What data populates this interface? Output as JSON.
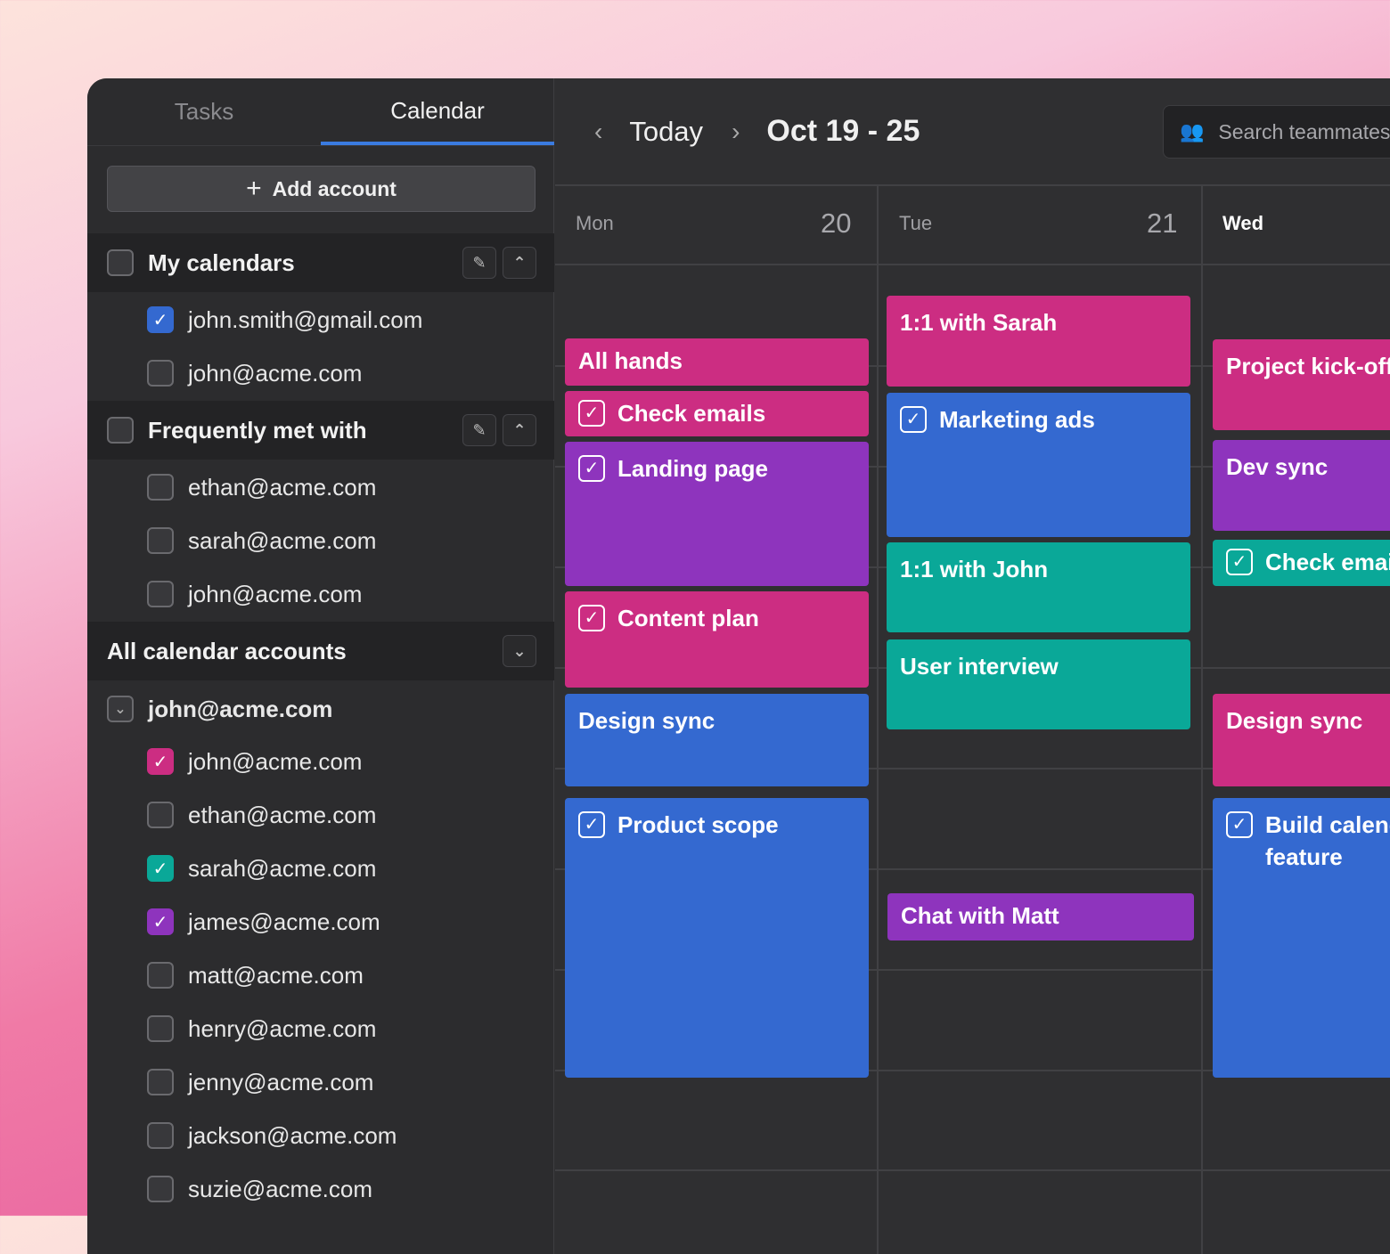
{
  "tabs": {
    "tasks": "Tasks",
    "calendar": "Calendar",
    "active": "Calendar"
  },
  "add_account": "Add account",
  "groups": [
    {
      "label": "My calendars",
      "items": [
        {
          "email": "john.smith@gmail.com",
          "checked": true,
          "color": "#3469d0"
        },
        {
          "email": "john@acme.com",
          "checked": false
        }
      ]
    },
    {
      "label": "Frequently met with",
      "items": [
        {
          "email": "ethan@acme.com",
          "checked": false
        },
        {
          "email": "sarah@acme.com",
          "checked": false
        },
        {
          "email": "john@acme.com",
          "checked": false
        }
      ]
    }
  ],
  "all_accounts": {
    "label": "All calendar accounts",
    "account": "john@acme.com",
    "items": [
      {
        "email": "john@acme.com",
        "checked": true,
        "color": "#cc2d82"
      },
      {
        "email": "ethan@acme.com",
        "checked": false
      },
      {
        "email": "sarah@acme.com",
        "checked": true,
        "color": "#0aa898"
      },
      {
        "email": "james@acme.com",
        "checked": true,
        "color": "#8e34bd"
      },
      {
        "email": "matt@acme.com",
        "checked": false
      },
      {
        "email": "henry@acme.com",
        "checked": false
      },
      {
        "email": "jenny@acme.com",
        "checked": false
      },
      {
        "email": "jackson@acme.com",
        "checked": false
      },
      {
        "email": "suzie@acme.com",
        "checked": false
      }
    ]
  },
  "header": {
    "today": "Today",
    "range": "Oct 19 - 25",
    "search_placeholder": "Search teammates"
  },
  "days": [
    {
      "name": "Mon",
      "num": "20"
    },
    {
      "name": "Tue",
      "num": "21"
    },
    {
      "name": "Wed",
      "num": ""
    }
  ],
  "colors": {
    "pink": "#cc2d82",
    "blue": "#3469d0",
    "purple": "#8e34bd",
    "teal": "#0aa898",
    "accent": "#3a7be0"
  },
  "events": [
    {
      "day": 0,
      "title": "All hands",
      "color": "pink",
      "task": false
    },
    {
      "day": 0,
      "title": "Check emails",
      "color": "pink",
      "task": true
    },
    {
      "day": 0,
      "title": "Landing page",
      "color": "purple",
      "task": true
    },
    {
      "day": 0,
      "title": "Content plan",
      "color": "pink",
      "task": true
    },
    {
      "day": 0,
      "title": "Design sync",
      "color": "blue",
      "task": false
    },
    {
      "day": 0,
      "title": "Product scope",
      "color": "blue",
      "task": true
    },
    {
      "day": 1,
      "title": "1:1 with Sarah",
      "color": "pink",
      "task": false
    },
    {
      "day": 1,
      "title": "Marketing ads",
      "color": "blue",
      "task": true
    },
    {
      "day": 1,
      "title": "1:1 with John",
      "color": "teal",
      "task": false
    },
    {
      "day": 1,
      "title": "User interview",
      "color": "teal",
      "task": false
    },
    {
      "day": 1,
      "title": "Chat with Matt",
      "color": "purple",
      "task": false
    },
    {
      "day": 2,
      "title": "Project kick-off",
      "color": "pink",
      "task": false
    },
    {
      "day": 2,
      "title": "Dev sync",
      "color": "purple",
      "task": false
    },
    {
      "day": 2,
      "title": "Check emails",
      "color": "teal",
      "task": true
    },
    {
      "day": 2,
      "title": "Design sync",
      "color": "pink",
      "task": false
    },
    {
      "day": 2,
      "title": "Build calendar feature",
      "color": "blue",
      "task": true
    }
  ]
}
